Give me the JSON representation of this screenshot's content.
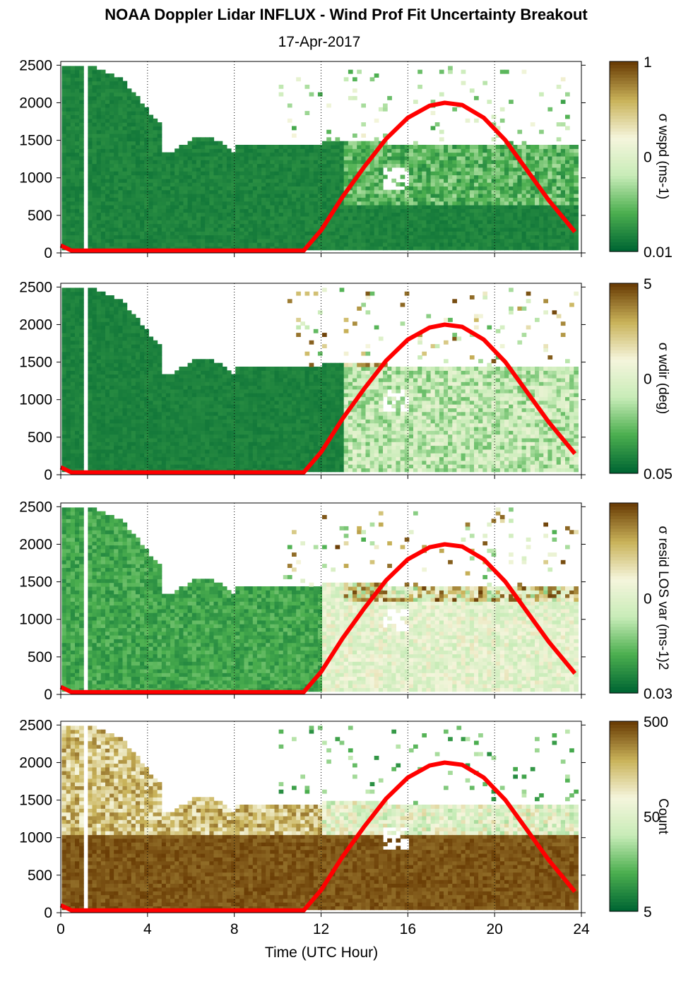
{
  "figure": {
    "title": "NOAA Doppler Lidar INFLUX - Wind Prof Fit Uncertainty Breakout",
    "subtitle": "17-Apr-2017",
    "xlabel": "Time (UTC Hour)"
  },
  "colors": {
    "dark_green": "#006633",
    "mid_green": "#4caf4f",
    "light_green": "#c8ecb8",
    "pale": "#f5f5dc",
    "tan": "#c9b35a",
    "brown": "#6b3e06",
    "curve": "#ff0000"
  },
  "chart_data": [
    {
      "type": "heatmap",
      "name": "wspd",
      "ylabel": "",
      "colorbar_label": "σ wspd (ms-1)",
      "colorbar_ticks": [
        "1",
        "0",
        "0.01"
      ],
      "x_ticks": [
        0,
        4,
        8,
        12,
        16,
        20,
        24
      ],
      "y_ticks": [
        0,
        500,
        1000,
        1500,
        2000,
        2500
      ],
      "xlim": [
        0,
        24
      ],
      "ylim": [
        0,
        2550
      ],
      "grid": "dotted vertical at x ticks",
      "style": "green"
    },
    {
      "type": "heatmap",
      "name": "wdir",
      "ylabel": "",
      "colorbar_label": "σ wdir (deg)",
      "colorbar_ticks": [
        "5",
        "0",
        "0.05"
      ],
      "x_ticks": [
        0,
        4,
        8,
        12,
        16,
        20,
        24
      ],
      "y_ticks": [
        0,
        500,
        1000,
        1500,
        2000,
        2500
      ],
      "xlim": [
        0,
        24
      ],
      "ylim": [
        0,
        2550
      ],
      "grid": "dotted vertical at x ticks",
      "style": "mixed"
    },
    {
      "type": "heatmap",
      "name": "resid",
      "ylabel": "",
      "colorbar_label": "σ resid LOS var (ms-1)2",
      "colorbar_ticks": [
        "0",
        "0.03"
      ],
      "x_ticks": [
        0,
        4,
        8,
        12,
        16,
        20,
        24
      ],
      "y_ticks": [
        0,
        500,
        1000,
        1500,
        2000,
        2500
      ],
      "xlim": [
        0,
        24
      ],
      "ylim": [
        0,
        2550
      ],
      "grid": "dotted vertical at x ticks",
      "style": "pale"
    },
    {
      "type": "heatmap",
      "name": "count",
      "ylabel": "",
      "colorbar_label": "Count",
      "colorbar_ticks": [
        "500",
        "50",
        "5"
      ],
      "x_ticks": [
        0,
        4,
        8,
        12,
        16,
        20,
        24
      ],
      "y_ticks": [
        0,
        500,
        1000,
        1500,
        2000,
        2500
      ],
      "xlim": [
        0,
        24
      ],
      "ylim": [
        0,
        2550
      ],
      "grid": "dotted vertical at x ticks",
      "style": "brown"
    }
  ],
  "curve": {
    "x": [
      0,
      0.5,
      11.2,
      12,
      13,
      14,
      15,
      16,
      17,
      17.7,
      18.5,
      19.5,
      20.5,
      21.5,
      22.5,
      23.7
    ],
    "y": [
      100,
      30,
      30,
      300,
      750,
      1150,
      1520,
      1800,
      1960,
      2000,
      1970,
      1800,
      1500,
      1100,
      700,
      280
    ]
  }
}
